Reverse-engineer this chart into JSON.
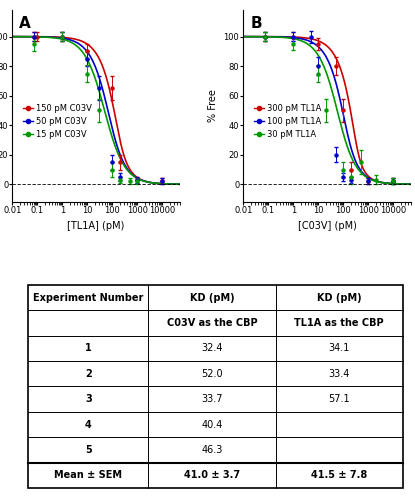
{
  "panel_A": {
    "label": "A",
    "xlabel": "[TL1A] (pM)",
    "ylabel": "% Free",
    "curves": [
      {
        "color": "#cc0000",
        "label": "150 pM C03V",
        "KD": 41.0,
        "CBP": 150.0
      },
      {
        "color": "#0000cc",
        "label": "50 pM C03V",
        "KD": 41.0,
        "CBP": 50.0
      },
      {
        "color": "#009900",
        "label": "15 pM C03V",
        "KD": 41.0,
        "CBP": 15.0
      }
    ],
    "data_points": {
      "red": {
        "x": [
          0.07,
          0.1,
          1.0,
          10,
          100,
          200,
          1000,
          10000
        ],
        "y": [
          100,
          100,
          100,
          90,
          65,
          15,
          3,
          2
        ],
        "yerr": [
          3,
          3,
          3,
          5,
          8,
          5,
          2,
          2
        ]
      },
      "blue": {
        "x": [
          0.07,
          1.0,
          10,
          30,
          100,
          200,
          1000,
          10000
        ],
        "y": [
          100,
          100,
          85,
          65,
          15,
          5,
          3,
          2
        ],
        "yerr": [
          3,
          3,
          5,
          8,
          5,
          3,
          2,
          2
        ]
      },
      "green": {
        "x": [
          0.07,
          1.0,
          10,
          30,
          100,
          200,
          500,
          1000
        ],
        "y": [
          95,
          100,
          75,
          50,
          10,
          3,
          2,
          2
        ],
        "yerr": [
          5,
          3,
          6,
          8,
          5,
          2,
          2,
          2
        ]
      }
    }
  },
  "panel_B": {
    "label": "B",
    "xlabel": "[C03V] (pM)",
    "ylabel": "% Free",
    "curves": [
      {
        "color": "#cc0000",
        "label": "300 pM TL1A",
        "KD": 41.5,
        "CBP": 300.0
      },
      {
        "color": "#0000cc",
        "label": "100 pM TL1A",
        "KD": 41.5,
        "CBP": 100.0
      },
      {
        "color": "#009900",
        "label": "30 pM TL1A",
        "KD": 41.5,
        "CBP": 30.0
      }
    ],
    "data_points": {
      "red": {
        "x": [
          0.07,
          1.0,
          10,
          50,
          100,
          200,
          1000,
          10000
        ],
        "y": [
          100,
          100,
          95,
          80,
          50,
          10,
          2,
          2
        ],
        "yerr": [
          3,
          3,
          4,
          6,
          8,
          5,
          2,
          2
        ]
      },
      "blue": {
        "x": [
          0.07,
          1.0,
          5,
          10,
          50,
          100,
          200,
          1000,
          10000
        ],
        "y": [
          100,
          100,
          100,
          80,
          20,
          5,
          3,
          2,
          2
        ],
        "yerr": [
          3,
          3,
          4,
          6,
          5,
          3,
          2,
          2,
          2
        ]
      },
      "green": {
        "x": [
          0.07,
          1.0,
          10,
          20,
          100,
          200,
          500,
          2000,
          10000
        ],
        "y": [
          100,
          95,
          75,
          50,
          10,
          5,
          15,
          3,
          2
        ],
        "yerr": [
          3,
          4,
          6,
          8,
          5,
          5,
          8,
          3,
          2
        ]
      }
    }
  },
  "table": {
    "col_headers": [
      "Experiment Number",
      "KD (pM)",
      "KD (pM)"
    ],
    "sub_headers": [
      "",
      "C03V as the CBP",
      "TL1A as the CBP"
    ],
    "rows": [
      [
        "1",
        "32.4",
        "34.1"
      ],
      [
        "2",
        "52.0",
        "33.4"
      ],
      [
        "3",
        "33.7",
        "57.1"
      ],
      [
        "4",
        "40.4",
        ""
      ],
      [
        "5",
        "46.3",
        ""
      ],
      [
        "Mean ± SEM",
        "41.0 ± 3.7",
        "41.5 ± 7.8"
      ]
    ]
  },
  "bg_color": "#ffffff",
  "font_size_label": 7,
  "font_size_tick": 6,
  "font_size_legend": 6,
  "font_size_panel": 11
}
